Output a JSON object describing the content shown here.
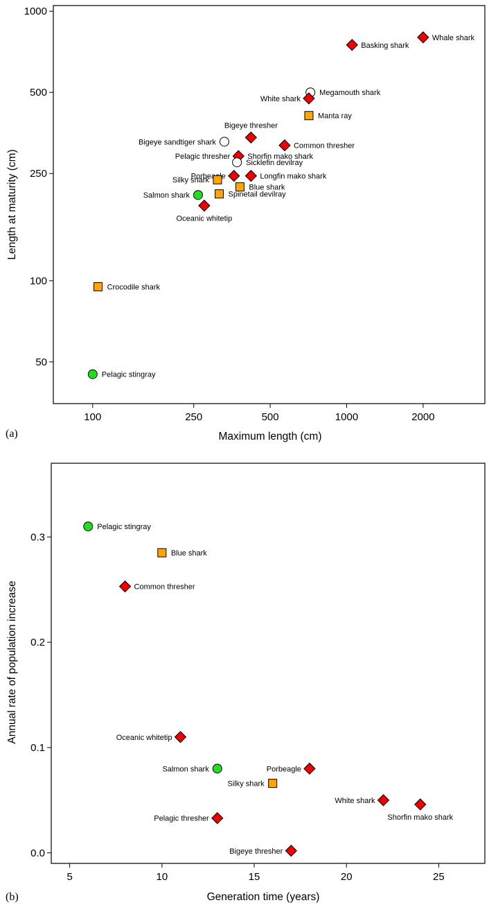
{
  "chart_data": [
    {
      "type": "scatter",
      "panel_label": "(a)",
      "xlabel": "Maximum length (cm)",
      "ylabel": "Length at maturity (cm)",
      "xscale": "log",
      "yscale": "log",
      "xlim": [
        70,
        3500
      ],
      "ylim": [
        35,
        1050
      ],
      "xticks": [
        100,
        250,
        500,
        1000,
        2000
      ],
      "xtick_labels": [
        "100",
        "250",
        "500",
        "1000",
        "2000"
      ],
      "yticks": [
        50,
        100,
        250,
        500,
        1000
      ],
      "ytick_labels": [
        "50",
        "100",
        "250",
        "500",
        "1000"
      ],
      "grid": false,
      "legend": "none",
      "marker_colors": {
        "diamond": "#ee0000",
        "square": "#ffa500",
        "circle-green": "#22dd22",
        "circle-open": "#ffffff"
      },
      "points": [
        {
          "label": "Whale shark",
          "x": 2000,
          "y": 800,
          "marker": "diamond",
          "label_side": "right"
        },
        {
          "label": "Basking shark",
          "x": 1050,
          "y": 750,
          "marker": "diamond",
          "label_side": "right"
        },
        {
          "label": "Megamouth shark",
          "x": 720,
          "y": 500,
          "marker": "circle-open",
          "label_side": "right"
        },
        {
          "label": "White shark",
          "x": 710,
          "y": 475,
          "marker": "diamond",
          "label_side": "left"
        },
        {
          "label": "Manta ray",
          "x": 710,
          "y": 410,
          "marker": "square",
          "label_side": "right"
        },
        {
          "label": "Bigeye thresher",
          "x": 420,
          "y": 340,
          "marker": "diamond",
          "label_side": "above"
        },
        {
          "label": "Bigeye sandtiger shark",
          "x": 330,
          "y": 328,
          "marker": "circle-open",
          "label_side": "left"
        },
        {
          "label": "Common thresher",
          "x": 570,
          "y": 318,
          "marker": "diamond",
          "label_side": "right"
        },
        {
          "label": "Pelagic thresher",
          "x": 375,
          "y": 290,
          "marker": "diamond",
          "label_side": "left"
        },
        {
          "label": "Shorfin mako shark",
          "x": 375,
          "y": 290,
          "marker": "diamond",
          "label_side": "right"
        },
        {
          "label": "Sicklefin devilray",
          "x": 370,
          "y": 275,
          "marker": "circle-open",
          "label_side": "right"
        },
        {
          "label": "Porbeagle",
          "x": 360,
          "y": 245,
          "marker": "diamond",
          "label_side": "left"
        },
        {
          "label": "Longfin mako shark",
          "x": 420,
          "y": 245,
          "marker": "diamond",
          "label_side": "right"
        },
        {
          "label": "Silky shark",
          "x": 310,
          "y": 237,
          "marker": "square",
          "label_side": "left"
        },
        {
          "label": "Blue shark",
          "x": 380,
          "y": 223,
          "marker": "square",
          "label_side": "right"
        },
        {
          "label": "Spinetail devilray",
          "x": 315,
          "y": 210,
          "marker": "square",
          "label_side": "right"
        },
        {
          "label": "Salmon shark",
          "x": 260,
          "y": 208,
          "marker": "circle-green",
          "label_side": "left"
        },
        {
          "label": "Oceanic whitetip",
          "x": 275,
          "y": 190,
          "marker": "diamond",
          "label_side": "below"
        },
        {
          "label": "Crocodile shark",
          "x": 105,
          "y": 95,
          "marker": "square",
          "label_side": "right"
        },
        {
          "label": "Pelagic stingray",
          "x": 100,
          "y": 45,
          "marker": "circle-green",
          "label_side": "right"
        }
      ]
    },
    {
      "type": "scatter",
      "panel_label": "(b)",
      "xlabel": "Generation time (years)",
      "ylabel": "Annual rate of population increase",
      "xscale": "linear",
      "yscale": "linear",
      "xlim": [
        4,
        27.5
      ],
      "ylim": [
        -0.01,
        0.37
      ],
      "xticks": [
        5,
        10,
        15,
        20,
        25
      ],
      "xtick_labels": [
        "5",
        "10",
        "15",
        "20",
        "25"
      ],
      "yticks": [
        0.0,
        0.1,
        0.2,
        0.3
      ],
      "ytick_labels": [
        "0.0",
        "0.1",
        "0.2",
        "0.3"
      ],
      "grid": false,
      "legend": "none",
      "marker_colors": {
        "diamond": "#ee0000",
        "square": "#ffa500",
        "circle-green": "#22dd22"
      },
      "points": [
        {
          "label": "Pelagic stingray",
          "x": 6,
          "y": 0.31,
          "marker": "circle-green",
          "label_side": "right"
        },
        {
          "label": "Blue shark",
          "x": 10,
          "y": 0.285,
          "marker": "square",
          "label_side": "right"
        },
        {
          "label": "Common thresher",
          "x": 8,
          "y": 0.253,
          "marker": "diamond",
          "label_side": "right"
        },
        {
          "label": "Oceanic whitetip",
          "x": 11,
          "y": 0.11,
          "marker": "diamond",
          "label_side": "left"
        },
        {
          "label": "Salmon shark",
          "x": 13,
          "y": 0.08,
          "marker": "circle-green",
          "label_side": "left"
        },
        {
          "label": "Porbeagle",
          "x": 18,
          "y": 0.08,
          "marker": "diamond",
          "label_side": "left"
        },
        {
          "label": "Silky shark",
          "x": 16,
          "y": 0.066,
          "marker": "square",
          "label_side": "left"
        },
        {
          "label": "White shark",
          "x": 22,
          "y": 0.05,
          "marker": "diamond",
          "label_side": "left"
        },
        {
          "label": "Shorfin mako shark",
          "x": 24,
          "y": 0.046,
          "marker": "diamond",
          "label_side": "below"
        },
        {
          "label": "Pelagic thresher",
          "x": 13,
          "y": 0.033,
          "marker": "diamond",
          "label_side": "left"
        },
        {
          "label": "Bigeye thresher",
          "x": 17,
          "y": 0.002,
          "marker": "diamond",
          "label_side": "left"
        }
      ]
    }
  ]
}
